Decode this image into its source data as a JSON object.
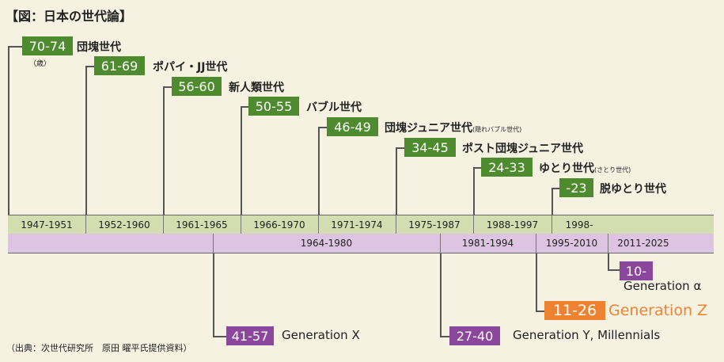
{
  "title": "【図：日本の世代論】",
  "age_unit": "（歳）",
  "source": "（出典：次世代研究所　原田 曜平氏提供資料）",
  "colors": {
    "japan": "#4e8a2e",
    "western": "#8b479b",
    "gen_z": "#ef8231",
    "japan_bar": "#d4ddb0",
    "western_bar": "#dcc4e2",
    "background": "#f6f2e2"
  },
  "japan_generations": [
    {
      "ages": "70-74",
      "name": "団塊世代",
      "note": "",
      "period": "1947-1951"
    },
    {
      "ages": "61-69",
      "name": "ポパイ・JJ世代",
      "note": "",
      "period": "1952-1960"
    },
    {
      "ages": "56-60",
      "name": "新人類世代",
      "note": "",
      "period": "1961-1965"
    },
    {
      "ages": "50-55",
      "name": "バブル世代",
      "note": "",
      "period": "1966-1970"
    },
    {
      "ages": "46-49",
      "name": "団塊ジュニア世代",
      "note": "(隠れバブル世代)",
      "period": "1971-1974"
    },
    {
      "ages": "34-45",
      "name": "ポスト団塊ジュニア世代",
      "note": "",
      "period": "1975-1987"
    },
    {
      "ages": "24-33",
      "name": "ゆとり世代",
      "note": "(さとり世代)",
      "period": "1988-1997"
    },
    {
      "ages": "-23",
      "name": "脱ゆとり世代",
      "note": "",
      "period": "1998-"
    }
  ],
  "western_generations": [
    {
      "ages": "41-57",
      "name": "Generation X",
      "period": "1964-1980"
    },
    {
      "ages": "27-40",
      "name": "Generation Y, Millennials",
      "period": "1981-1994"
    },
    {
      "ages": "11-26",
      "name": "Generation Z",
      "period": "1995-2010"
    },
    {
      "ages": "10-",
      "name": "Generation α",
      "period": "2011-2025"
    }
  ]
}
